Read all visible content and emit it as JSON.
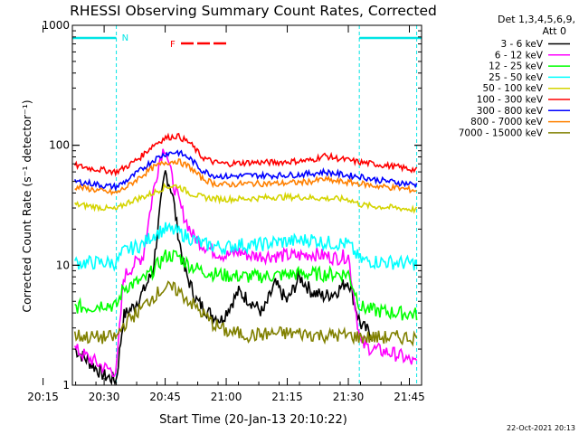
{
  "chart_data": {
    "type": "line",
    "title": "RHESSI Observing Summary Count Rates, Corrected",
    "ylabel": "Corrected Count Rate (s⁻¹ detector⁻¹)",
    "xlabel": "Start Time (20-Jan-13 20:10:22)",
    "yscale": "log",
    "ylim": [
      1,
      1000
    ],
    "xlim_minutes": [
      20.37,
      21.8
    ],
    "x_tick_labels": [
      "20:15",
      "20:30",
      "20:45",
      "21:00",
      "21:15",
      "21:30",
      "21:45"
    ],
    "y_tick_labels": [
      "1",
      "10",
      "100",
      "1000"
    ],
    "detector_info": [
      "Det 1,3,4,5,6,9,",
      "Att 0"
    ],
    "footer_date": "22-Oct-2021 20:13",
    "markers": {
      "night_label": "N",
      "flare_label": "F",
      "night_color": "#00e5e5",
      "flare_color": "#ff0000"
    },
    "series": [
      {
        "name": "3 - 6 keV",
        "color": "#000000",
        "points": [
          [
            20.38,
            2.0
          ],
          [
            20.5,
            1.2
          ],
          [
            20.55,
            1.1
          ],
          [
            20.58,
            3.8
          ],
          [
            20.62,
            4.5
          ],
          [
            20.66,
            6
          ],
          [
            20.7,
            9
          ],
          [
            20.73,
            30
          ],
          [
            20.75,
            60
          ],
          [
            20.78,
            40
          ],
          [
            20.8,
            20
          ],
          [
            20.83,
            9
          ],
          [
            20.88,
            5
          ],
          [
            20.93,
            4
          ],
          [
            20.98,
            3.5
          ],
          [
            21.05,
            6
          ],
          [
            21.1,
            5
          ],
          [
            21.15,
            4
          ],
          [
            21.2,
            7
          ],
          [
            21.25,
            5
          ],
          [
            21.3,
            8
          ],
          [
            21.35,
            6
          ],
          [
            21.4,
            5.5
          ],
          [
            21.45,
            6
          ],
          [
            21.5,
            7.5
          ],
          [
            21.55,
            3.2
          ],
          [
            21.6,
            2.6
          ]
        ]
      },
      {
        "name": "6 - 12 keV",
        "color": "#ff00ff",
        "points": [
          [
            20.38,
            2.0
          ],
          [
            20.5,
            1.4
          ],
          [
            20.55,
            1.3
          ],
          [
            20.58,
            8
          ],
          [
            20.62,
            10
          ],
          [
            20.66,
            12
          ],
          [
            20.7,
            40
          ],
          [
            20.73,
            80
          ],
          [
            20.75,
            100
          ],
          [
            20.78,
            50
          ],
          [
            20.82,
            28
          ],
          [
            20.86,
            18
          ],
          [
            20.9,
            15
          ],
          [
            20.95,
            13
          ],
          [
            21.0,
            12
          ],
          [
            21.05,
            13
          ],
          [
            21.1,
            12
          ],
          [
            21.2,
            12
          ],
          [
            21.3,
            12
          ],
          [
            21.35,
            12.5
          ],
          [
            21.4,
            12
          ],
          [
            21.45,
            11.5
          ],
          [
            21.5,
            12
          ],
          [
            21.55,
            2.2
          ],
          [
            21.6,
            2.0
          ],
          [
            21.7,
            1.8
          ],
          [
            21.78,
            1.5
          ]
        ]
      },
      {
        "name": "12 - 25 keV",
        "color": "#00ff00",
        "points": [
          [
            20.38,
            4.5
          ],
          [
            20.45,
            4.5
          ],
          [
            20.5,
            4.8
          ],
          [
            20.55,
            4.5
          ],
          [
            20.58,
            6.5
          ],
          [
            20.62,
            7
          ],
          [
            20.66,
            7.5
          ],
          [
            20.7,
            9
          ],
          [
            20.75,
            12
          ],
          [
            20.8,
            12
          ],
          [
            20.85,
            10
          ],
          [
            20.9,
            9
          ],
          [
            20.95,
            8.5
          ],
          [
            21.0,
            8.2
          ],
          [
            21.1,
            8
          ],
          [
            21.2,
            8.2
          ],
          [
            21.3,
            8.5
          ],
          [
            21.4,
            8.4
          ],
          [
            21.5,
            8.5
          ],
          [
            21.55,
            4.5
          ],
          [
            21.6,
            4.2
          ],
          [
            21.7,
            4
          ],
          [
            21.78,
            3.9
          ]
        ]
      },
      {
        "name": "25 - 50 keV",
        "color": "#00ffff",
        "points": [
          [
            20.38,
            10.5
          ],
          [
            20.45,
            10.5
          ],
          [
            20.55,
            10.5
          ],
          [
            20.58,
            13
          ],
          [
            20.62,
            14
          ],
          [
            20.66,
            15
          ],
          [
            20.7,
            18
          ],
          [
            20.75,
            20
          ],
          [
            20.8,
            19
          ],
          [
            20.85,
            17
          ],
          [
            20.9,
            15
          ],
          [
            20.95,
            14.5
          ],
          [
            21.0,
            14
          ],
          [
            21.05,
            15
          ],
          [
            21.1,
            14.5
          ],
          [
            21.2,
            15.5
          ],
          [
            21.3,
            16
          ],
          [
            21.35,
            16.5
          ],
          [
            21.4,
            15.5
          ],
          [
            21.5,
            15
          ],
          [
            21.55,
            11
          ],
          [
            21.6,
            10.8
          ],
          [
            21.7,
            10.5
          ],
          [
            21.78,
            10.3
          ]
        ]
      },
      {
        "name": "50 - 100 keV",
        "color": "#d4d400",
        "points": [
          [
            20.38,
            32
          ],
          [
            20.45,
            31
          ],
          [
            20.5,
            30
          ],
          [
            20.55,
            29
          ],
          [
            20.58,
            32
          ],
          [
            20.62,
            35
          ],
          [
            20.66,
            37
          ],
          [
            20.7,
            40
          ],
          [
            20.75,
            45
          ],
          [
            20.8,
            46
          ],
          [
            20.85,
            40
          ],
          [
            20.9,
            37
          ],
          [
            20.95,
            36
          ],
          [
            21.0,
            35.5
          ],
          [
            21.1,
            36
          ],
          [
            21.2,
            37
          ],
          [
            21.3,
            37
          ],
          [
            21.4,
            36
          ],
          [
            21.5,
            35.5
          ],
          [
            21.55,
            32
          ],
          [
            21.6,
            31
          ],
          [
            21.7,
            30
          ],
          [
            21.78,
            29
          ]
        ]
      },
      {
        "name": "100 - 300 keV",
        "color": "#ff0000",
        "points": [
          [
            20.38,
            68
          ],
          [
            20.45,
            64
          ],
          [
            20.5,
            62
          ],
          [
            20.55,
            60
          ],
          [
            20.6,
            68
          ],
          [
            20.65,
            80
          ],
          [
            20.7,
            100
          ],
          [
            20.75,
            115
          ],
          [
            20.8,
            120
          ],
          [
            20.85,
            105
          ],
          [
            20.9,
            80
          ],
          [
            20.95,
            72
          ],
          [
            21.0,
            70
          ],
          [
            21.1,
            72
          ],
          [
            21.2,
            72
          ],
          [
            21.3,
            74
          ],
          [
            21.35,
            75
          ],
          [
            21.4,
            82
          ],
          [
            21.45,
            78
          ],
          [
            21.5,
            75
          ],
          [
            21.55,
            72
          ],
          [
            21.6,
            70
          ],
          [
            21.7,
            66
          ],
          [
            21.78,
            62
          ]
        ]
      },
      {
        "name": "300 - 800 keV",
        "color": "#0000ff",
        "points": [
          [
            20.38,
            50
          ],
          [
            20.45,
            48
          ],
          [
            20.5,
            46
          ],
          [
            20.55,
            45
          ],
          [
            20.6,
            52
          ],
          [
            20.65,
            62
          ],
          [
            20.7,
            75
          ],
          [
            20.75,
            85
          ],
          [
            20.8,
            88
          ],
          [
            20.85,
            78
          ],
          [
            20.9,
            62
          ],
          [
            20.95,
            56
          ],
          [
            21.0,
            55
          ],
          [
            21.1,
            56
          ],
          [
            21.2,
            56
          ],
          [
            21.3,
            57
          ],
          [
            21.35,
            58
          ],
          [
            21.4,
            60
          ],
          [
            21.45,
            58
          ],
          [
            21.5,
            56
          ],
          [
            21.55,
            55
          ],
          [
            21.6,
            52
          ],
          [
            21.7,
            49
          ],
          [
            21.78,
            47
          ]
        ]
      },
      {
        "name": "800 - 7000 keV",
        "color": "#ff8000",
        "points": [
          [
            20.38,
            45
          ],
          [
            20.45,
            43
          ],
          [
            20.5,
            41
          ],
          [
            20.55,
            40
          ],
          [
            20.6,
            46
          ],
          [
            20.65,
            55
          ],
          [
            20.7,
            65
          ],
          [
            20.75,
            72
          ],
          [
            20.8,
            74
          ],
          [
            20.85,
            66
          ],
          [
            20.9,
            53
          ],
          [
            20.95,
            48
          ],
          [
            21.0,
            47
          ],
          [
            21.1,
            48
          ],
          [
            21.2,
            48
          ],
          [
            21.3,
            49
          ],
          [
            21.35,
            50
          ],
          [
            21.4,
            52
          ],
          [
            21.45,
            50
          ],
          [
            21.5,
            49
          ],
          [
            21.55,
            48
          ],
          [
            21.6,
            46
          ],
          [
            21.7,
            44
          ],
          [
            21.78,
            42
          ]
        ]
      },
      {
        "name": "7000 - 15000 keV",
        "color": "#808000",
        "points": [
          [
            20.38,
            2.6
          ],
          [
            20.45,
            2.5
          ],
          [
            20.5,
            2.5
          ],
          [
            20.55,
            2.5
          ],
          [
            20.58,
            3.2
          ],
          [
            20.62,
            3.8
          ],
          [
            20.66,
            4.5
          ],
          [
            20.7,
            5.5
          ],
          [
            20.75,
            6.5
          ],
          [
            20.8,
            6.2
          ],
          [
            20.85,
            5
          ],
          [
            20.9,
            4
          ],
          [
            20.95,
            3.2
          ],
          [
            21.0,
            2.8
          ],
          [
            21.1,
            2.6
          ],
          [
            21.2,
            2.7
          ],
          [
            21.3,
            2.7
          ],
          [
            21.4,
            2.6
          ],
          [
            21.5,
            2.6
          ],
          [
            21.55,
            2.5
          ],
          [
            21.6,
            2.5
          ],
          [
            21.7,
            2.5
          ],
          [
            21.78,
            2.5
          ]
        ]
      }
    ]
  }
}
